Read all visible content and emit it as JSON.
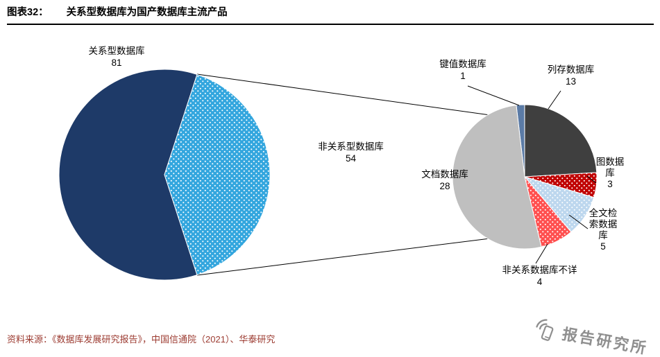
{
  "header": {
    "figure_label": "图表32：",
    "title": "关系型数据库为国产数据库主流产品"
  },
  "chart_data": [
    {
      "type": "pie",
      "start_angle": 162,
      "slices": [
        {
          "label": "关系型数据库",
          "value": 81,
          "color": "#1E3A68",
          "dots": false
        },
        {
          "label": "非关系型数据库",
          "value": 54,
          "color": "#33A6DE",
          "dots": true
        }
      ]
    },
    {
      "type": "pie",
      "start_angle": -6.7,
      "slices": [
        {
          "label": "键值数据库",
          "value": 1,
          "color": "#5B7BA6",
          "dots": false
        },
        {
          "label": "列存数据库",
          "value": 13,
          "color": "#3F3F3F",
          "dots": false
        },
        {
          "label": "图数据库",
          "value": 3,
          "color": "#C00000",
          "dots": true
        },
        {
          "label": "全文检索数据库",
          "value": 5,
          "color": "#BDD7EE",
          "dots": true
        },
        {
          "label": "非关系数据库不详",
          "value": 4,
          "color": "#FF5050",
          "dots": true
        },
        {
          "label": "文档数据库",
          "value": 28,
          "color": "#BFBFBF",
          "dots": false
        }
      ]
    }
  ],
  "source": {
    "text": "资料来源：《数据库发展研究报告》，中国信通院（2021）、华泰研究",
    "color": "#9C3B31"
  },
  "watermark": {
    "text": "报告研究所",
    "color": "#8F8F8F"
  }
}
